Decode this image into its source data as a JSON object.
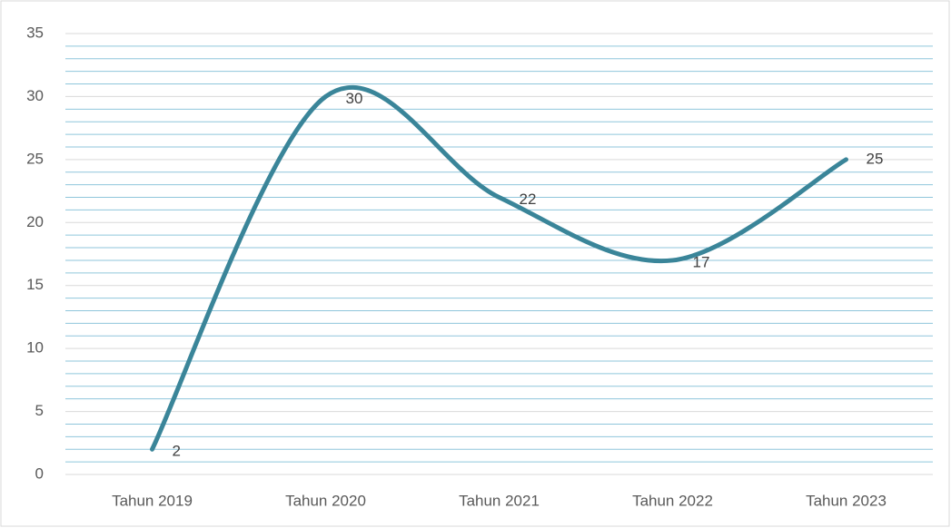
{
  "chart_data": {
    "type": "line",
    "smooth": true,
    "categories": [
      "Tahun 2019",
      "Tahun 2020",
      "Tahun 2021",
      "Tahun 2022",
      "Tahun 2023"
    ],
    "values": [
      2,
      30,
      22,
      17,
      25
    ],
    "color": "#3a8599",
    "ylim": [
      0,
      35
    ],
    "yticks": [
      0,
      5,
      10,
      15,
      20,
      25,
      30,
      35
    ],
    "minor_yticks": [
      1,
      2,
      3,
      4,
      6,
      7,
      8,
      9,
      11,
      12,
      13,
      14,
      16,
      17,
      18,
      19,
      21,
      22,
      23,
      24,
      26,
      27,
      28,
      29,
      31,
      32,
      33,
      34
    ],
    "grid": true,
    "minor_grid_color": "#8fc6db",
    "grid_color": "#d9d9d9",
    "data_labels": true
  }
}
